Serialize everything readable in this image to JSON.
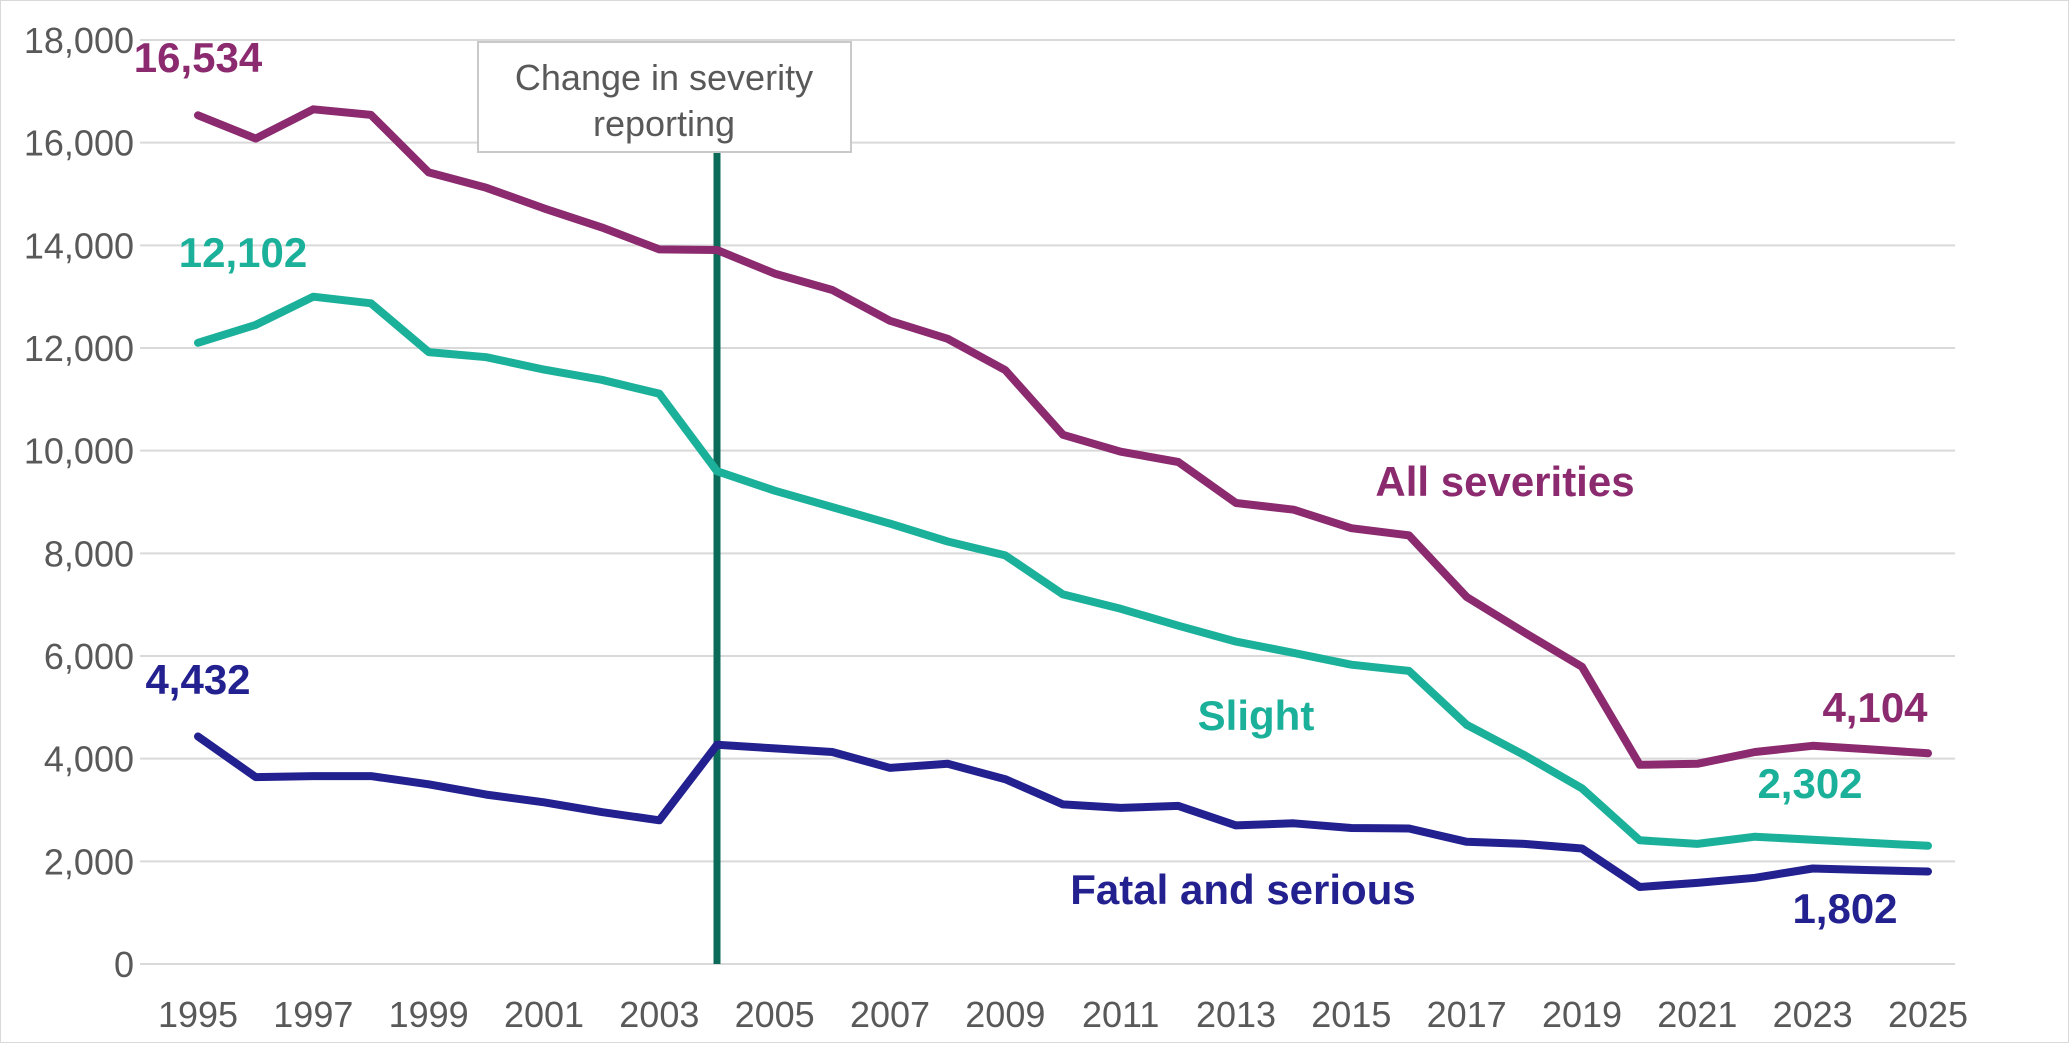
{
  "chart_data": {
    "type": "line",
    "title": "",
    "xlabel": "",
    "ylabel": "",
    "ylim": [
      0,
      18000
    ],
    "xlim": [
      1995,
      2025
    ],
    "y_ticks": [
      "0",
      "2,000",
      "4,000",
      "6,000",
      "8,000",
      "10,000",
      "12,000",
      "14,000",
      "16,000",
      "18,000"
    ],
    "x_ticks": [
      "1995",
      "1997",
      "1999",
      "2001",
      "2003",
      "2005",
      "2007",
      "2009",
      "2011",
      "2013",
      "2015",
      "2017",
      "2019",
      "2021",
      "2023",
      "2025"
    ],
    "grid": true,
    "x": [
      1995,
      1996,
      1997,
      1998,
      1999,
      2000,
      2001,
      2002,
      2003,
      2004,
      2005,
      2006,
      2007,
      2008,
      2009,
      2010,
      2011,
      2012,
      2013,
      2014,
      2015,
      2016,
      2017,
      2018,
      2019,
      2020,
      2021,
      2022,
      2023,
      2024,
      2025
    ],
    "series": [
      {
        "name": "All severities",
        "color": "#8b2a6e",
        "values": [
          16534,
          16080,
          16650,
          16540,
          15420,
          15120,
          14720,
          14350,
          13920,
          13910,
          13450,
          13130,
          12530,
          12180,
          11570,
          10310,
          9980,
          9780,
          8980,
          8850,
          8490,
          8350,
          7150,
          6460,
          5790,
          3880,
          3900,
          4130,
          4250,
          4180,
          4104
        ],
        "start_label": "16,534",
        "end_label": "4,104"
      },
      {
        "name": "Slight",
        "color": "#1bb09a",
        "values": [
          12102,
          12450,
          13000,
          12870,
          11920,
          11820,
          11580,
          11380,
          11110,
          9600,
          9220,
          8900,
          8580,
          8230,
          7960,
          7200,
          6920,
          6590,
          6280,
          6060,
          5830,
          5710,
          4660,
          4070,
          3420,
          2410,
          2340,
          2480,
          2420,
          2360,
          2302
        ],
        "start_label": "12,102",
        "end_label": "2,302"
      },
      {
        "name": "Fatal and serious",
        "color": "#23208f",
        "values": [
          4432,
          3640,
          3660,
          3660,
          3500,
          3300,
          3150,
          2960,
          2800,
          4270,
          4200,
          4130,
          3820,
          3900,
          3600,
          3110,
          3040,
          3080,
          2700,
          2740,
          2650,
          2640,
          2380,
          2340,
          2250,
          1500,
          1580,
          1680,
          1860,
          1830,
          1802
        ],
        "start_label": "4,432",
        "end_label": "1,802"
      }
    ],
    "annotation": {
      "text_line1": "Change in severity",
      "text_line2": "reporting",
      "x": 2004,
      "line_color": "#0c6b58"
    }
  }
}
